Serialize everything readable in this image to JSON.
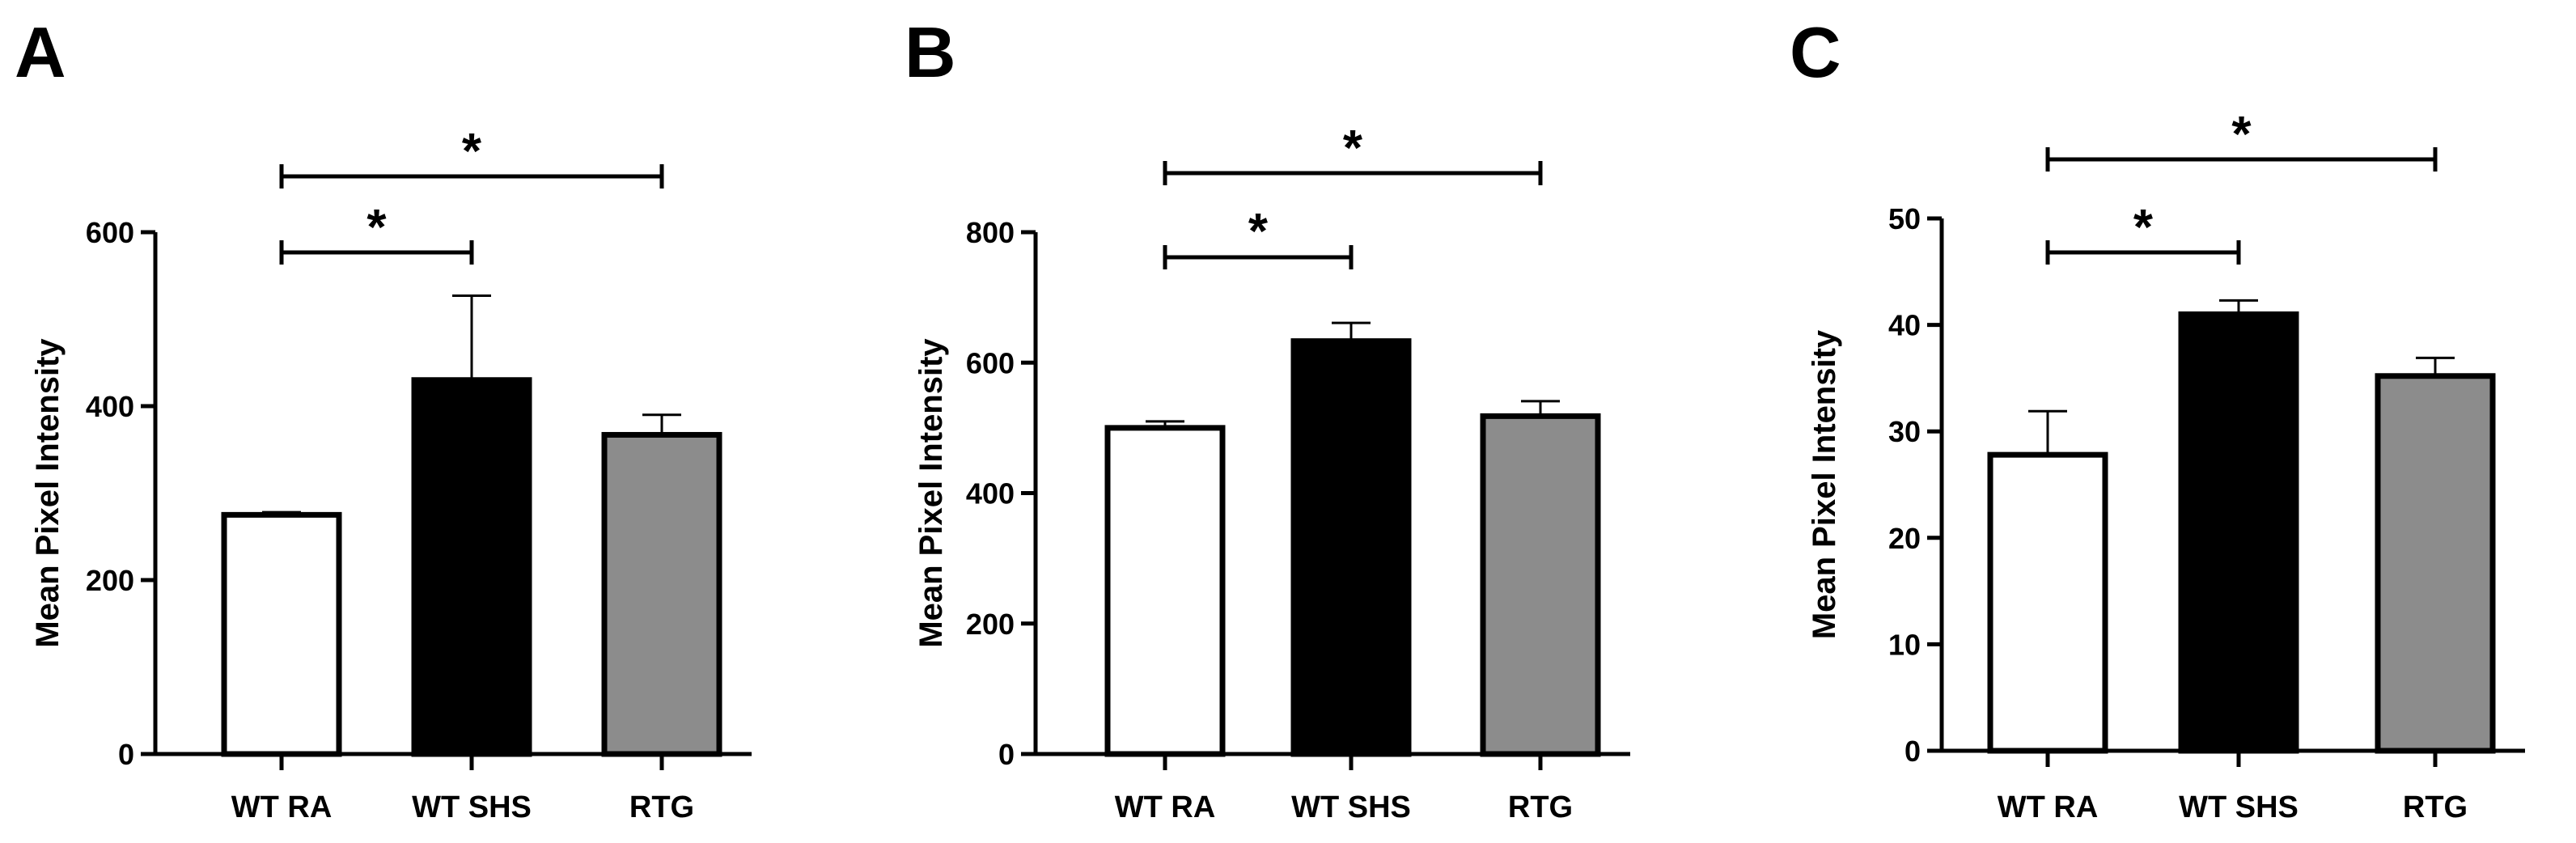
{
  "colors": {
    "wt_ra": "#ffffff",
    "wt_shs": "#000000",
    "rtg": "#8c8c8c",
    "stroke": "#000000"
  },
  "chart_data": [
    {
      "panel_label": "A",
      "type": "bar",
      "ylabel": "Mean Pixel Intensity",
      "categories": [
        "WT RA",
        "WT SHS",
        "RTG"
      ],
      "values": [
        275,
        430,
        367
      ],
      "error_upper": [
        278,
        527,
        390
      ],
      "ylim": [
        0,
        600
      ],
      "yticks": [
        0,
        200,
        400,
        600
      ],
      "significance": [
        {
          "from": 0,
          "to": 1,
          "label": "*"
        },
        {
          "from": 0,
          "to": 2,
          "label": "*"
        }
      ]
    },
    {
      "panel_label": "B",
      "type": "bar",
      "ylabel": "Mean Pixel Intensity",
      "categories": [
        "WT RA",
        "WT SHS",
        "RTG"
      ],
      "values": [
        500,
        633,
        518
      ],
      "error_upper": [
        510,
        661,
        541
      ],
      "ylim": [
        0,
        800
      ],
      "yticks": [
        0,
        200,
        400,
        600,
        800
      ],
      "significance": [
        {
          "from": 0,
          "to": 1,
          "label": "*"
        },
        {
          "from": 0,
          "to": 2,
          "label": "*"
        }
      ]
    },
    {
      "panel_label": "C",
      "type": "bar",
      "ylabel": "Mean Pixel Intensity",
      "categories": [
        "WT RA",
        "WT SHS",
        "RTG"
      ],
      "values": [
        27.8,
        41.0,
        35.2
      ],
      "error_upper": [
        31.9,
        42.3,
        36.9
      ],
      "ylim": [
        0,
        50
      ],
      "yticks": [
        0,
        10,
        20,
        30,
        40,
        50
      ],
      "significance": [
        {
          "from": 0,
          "to": 1,
          "label": "*"
        },
        {
          "from": 0,
          "to": 2,
          "label": "*"
        }
      ]
    }
  ]
}
